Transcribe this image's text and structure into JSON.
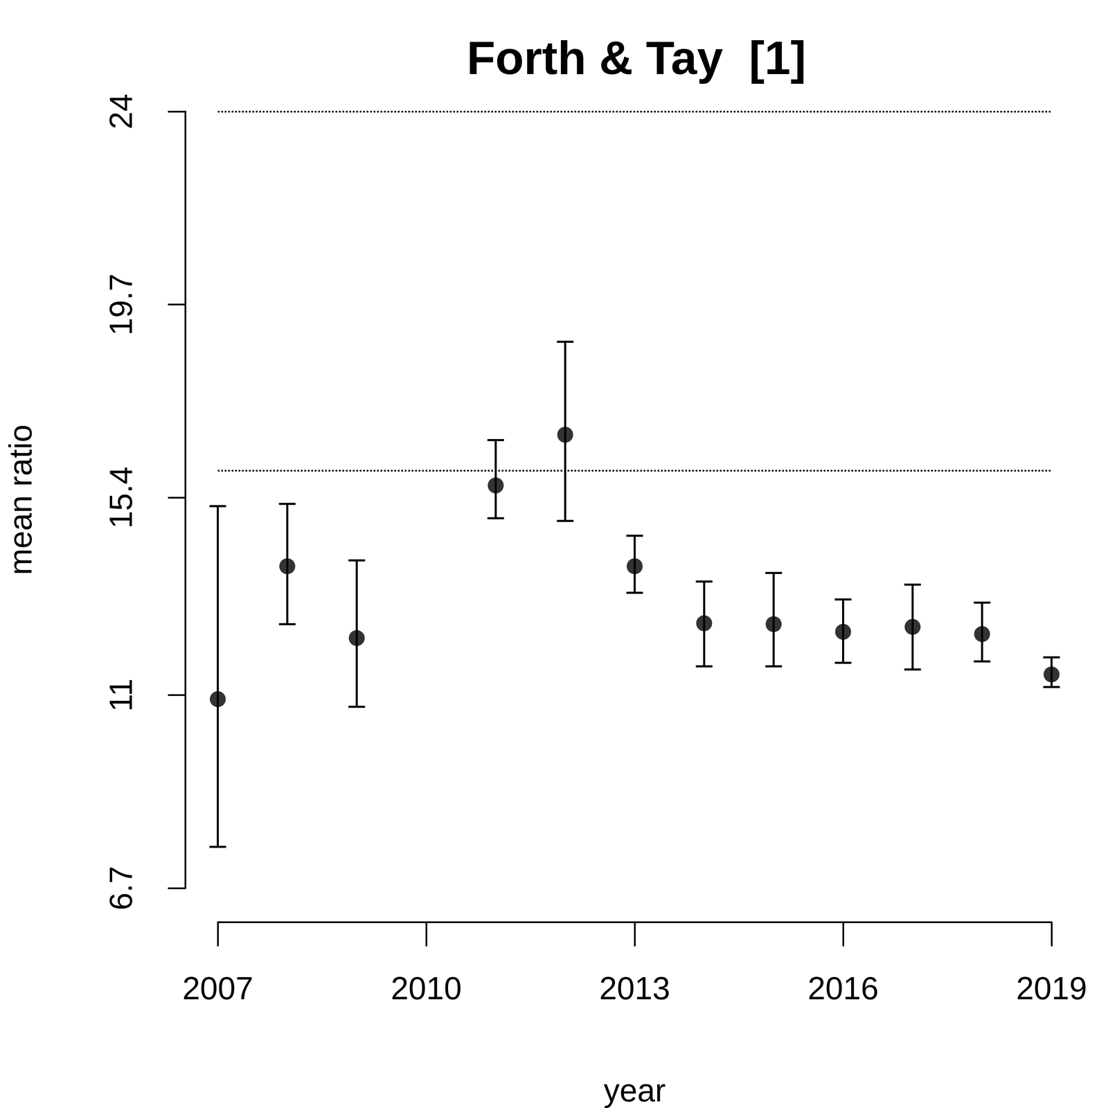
{
  "chart_data": {
    "type": "scatter",
    "title": "Forth & Tay  [1]",
    "x_label": "year",
    "y_label": "mean ratio",
    "x": [
      2007,
      2008,
      2009,
      2011,
      2012,
      2013,
      2014,
      2015,
      2016,
      2017,
      2018,
      2019
    ],
    "values": [
      10.91,
      13.87,
      12.27,
      15.67,
      16.8,
      13.87,
      12.6,
      12.58,
      12.41,
      12.52,
      12.36,
      11.46
    ],
    "lower": [
      7.62,
      12.58,
      10.74,
      14.94,
      14.88,
      13.28,
      11.64,
      11.64,
      11.72,
      11.57,
      11.75,
      11.18
    ],
    "upper": [
      15.21,
      15.26,
      14.0,
      16.68,
      18.87,
      14.55,
      13.53,
      13.72,
      13.13,
      13.46,
      13.06,
      11.84
    ],
    "reference_lines": [
      16.0,
      24
    ],
    "line_style": "dotted",
    "xlim": [
      2007,
      2019
    ],
    "xticks": [
      2007,
      2010,
      2013,
      2016,
      2019
    ],
    "ylim": [
      6.7,
      24
    ],
    "yticks": [
      6.7,
      11,
      15.4,
      19.7,
      24
    ],
    "color": "#000000",
    "marker": "circle",
    "grid": false
  }
}
